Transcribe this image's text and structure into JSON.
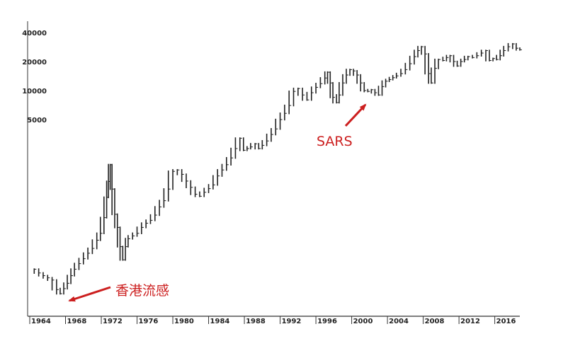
{
  "chart_data": {
    "type": "bar",
    "subtype": "ohlc-price-bars",
    "title": "",
    "xlabel": "",
    "ylabel": "",
    "scale": "log",
    "grid": false,
    "legend": "none",
    "xlim": [
      1964,
      2018.8
    ],
    "ylim": [
      70,
      49000
    ],
    "x_ticks": [
      1964,
      1968,
      1972,
      1976,
      1980,
      1984,
      1988,
      1992,
      1996,
      2000,
      2004,
      2008,
      2012,
      2016
    ],
    "x_tick_labels": [
      "1964",
      "1968",
      "1972",
      "1976",
      "1980",
      "1984",
      "1988",
      "1992",
      "1996",
      "2000",
      "2004",
      "2008",
      "2012",
      "2016"
    ],
    "y_ticks": [
      5000,
      10000,
      20000,
      40000
    ],
    "y_tick_labels": [
      "5000",
      "10000",
      "20000",
      "40000"
    ],
    "colors": {
      "bars": "#222222",
      "axis": "#333333",
      "annotation": "#cc1f1f"
    },
    "series": [
      {
        "points": [
          [
            1964.5,
            140
          ],
          [
            1965.0,
            128
          ],
          [
            1965.5,
            120
          ],
          [
            1966.0,
            114
          ],
          [
            1966.5,
            108
          ],
          [
            1967.0,
            86
          ],
          [
            1967.4,
            78
          ],
          [
            1967.8,
            88
          ],
          [
            1968.2,
            100
          ],
          [
            1968.6,
            120
          ],
          [
            1969.0,
            140
          ],
          [
            1969.5,
            160
          ],
          [
            1970.0,
            180
          ],
          [
            1970.5,
            205
          ],
          [
            1971.0,
            230
          ],
          [
            1971.5,
            280
          ],
          [
            1971.9,
            330
          ],
          [
            1972.3,
            480
          ],
          [
            1972.6,
            780
          ],
          [
            1972.8,
            1140
          ],
          [
            1973.0,
            1700
          ],
          [
            1973.2,
            950
          ],
          [
            1973.5,
            520
          ],
          [
            1973.8,
            380
          ],
          [
            1974.1,
            240
          ],
          [
            1974.4,
            175
          ],
          [
            1974.7,
            240
          ],
          [
            1975.0,
            290
          ],
          [
            1975.5,
            310
          ],
          [
            1976.0,
            330
          ],
          [
            1976.5,
            380
          ],
          [
            1977.0,
            420
          ],
          [
            1977.5,
            450
          ],
          [
            1978.0,
            510
          ],
          [
            1978.5,
            620
          ],
          [
            1979.0,
            720
          ],
          [
            1979.5,
            950
          ],
          [
            1980.0,
            1450
          ],
          [
            1980.5,
            1500
          ],
          [
            1981.0,
            1350
          ],
          [
            1981.5,
            1150
          ],
          [
            1982.0,
            990
          ],
          [
            1982.5,
            840
          ],
          [
            1983.0,
            800
          ],
          [
            1983.5,
            880
          ],
          [
            1984.0,
            960
          ],
          [
            1984.5,
            1050
          ],
          [
            1985.0,
            1300
          ],
          [
            1985.5,
            1500
          ],
          [
            1986.0,
            1700
          ],
          [
            1986.5,
            2000
          ],
          [
            1987.0,
            2500
          ],
          [
            1987.5,
            3200
          ],
          [
            1987.9,
            2400
          ],
          [
            1988.3,
            2500
          ],
          [
            1988.7,
            2600
          ],
          [
            1989.2,
            2800
          ],
          [
            1989.6,
            2500
          ],
          [
            1990.0,
            2700
          ],
          [
            1990.5,
            3000
          ],
          [
            1991.0,
            3500
          ],
          [
            1991.5,
            4000
          ],
          [
            1992.0,
            5000
          ],
          [
            1992.5,
            5800
          ],
          [
            1993.0,
            7000
          ],
          [
            1993.5,
            9800
          ],
          [
            1994.0,
            10500
          ],
          [
            1994.5,
            9000
          ],
          [
            1995.0,
            8000
          ],
          [
            1995.5,
            9500
          ],
          [
            1996.0,
            10800
          ],
          [
            1996.5,
            11800
          ],
          [
            1997.0,
            13500
          ],
          [
            1997.3,
            15500
          ],
          [
            1997.6,
            12000
          ],
          [
            1997.9,
            8500
          ],
          [
            1998.3,
            7500
          ],
          [
            1998.6,
            9000
          ],
          [
            1999.0,
            12000
          ],
          [
            1999.4,
            14500
          ],
          [
            1999.8,
            16500
          ],
          [
            2000.2,
            16000
          ],
          [
            2000.6,
            14500
          ],
          [
            2001.0,
            12000
          ],
          [
            2001.4,
            10000
          ],
          [
            2001.8,
            9800
          ],
          [
            2002.2,
            10200
          ],
          [
            2002.6,
            9500
          ],
          [
            2003.0,
            9000
          ],
          [
            2003.4,
            11000
          ],
          [
            2003.8,
            12500
          ],
          [
            2004.2,
            13000
          ],
          [
            2004.6,
            13600
          ],
          [
            2005.0,
            14200
          ],
          [
            2005.5,
            15000
          ],
          [
            2006.0,
            16500
          ],
          [
            2006.5,
            19000
          ],
          [
            2007.0,
            22500
          ],
          [
            2007.4,
            26000
          ],
          [
            2007.8,
            28500
          ],
          [
            2008.2,
            24000
          ],
          [
            2008.6,
            15000
          ],
          [
            2008.9,
            12000
          ],
          [
            2009.3,
            17000
          ],
          [
            2009.7,
            21000
          ],
          [
            2010.2,
            20500
          ],
          [
            2010.6,
            22000
          ],
          [
            2011.0,
            23000
          ],
          [
            2011.4,
            20000
          ],
          [
            2011.8,
            18000
          ],
          [
            2012.2,
            20000
          ],
          [
            2012.6,
            21000
          ],
          [
            2013.0,
            22500
          ],
          [
            2013.5,
            22000
          ],
          [
            2014.0,
            23000
          ],
          [
            2014.5,
            24500
          ],
          [
            2015.0,
            26000
          ],
          [
            2015.4,
            20500
          ],
          [
            2015.8,
            21500
          ],
          [
            2016.2,
            21000
          ],
          [
            2016.6,
            23000
          ],
          [
            2017.0,
            26000
          ],
          [
            2017.5,
            28500
          ],
          [
            2018.0,
            30500
          ],
          [
            2018.4,
            27500
          ],
          [
            2018.8,
            26500
          ]
        ]
      }
    ],
    "annotations": [
      {
        "id": "flu",
        "text": "香港流感",
        "x": 1967.1,
        "y": 80
      },
      {
        "id": "sars",
        "text": "SARS",
        "x": 2002.3,
        "y": 8600
      }
    ]
  }
}
